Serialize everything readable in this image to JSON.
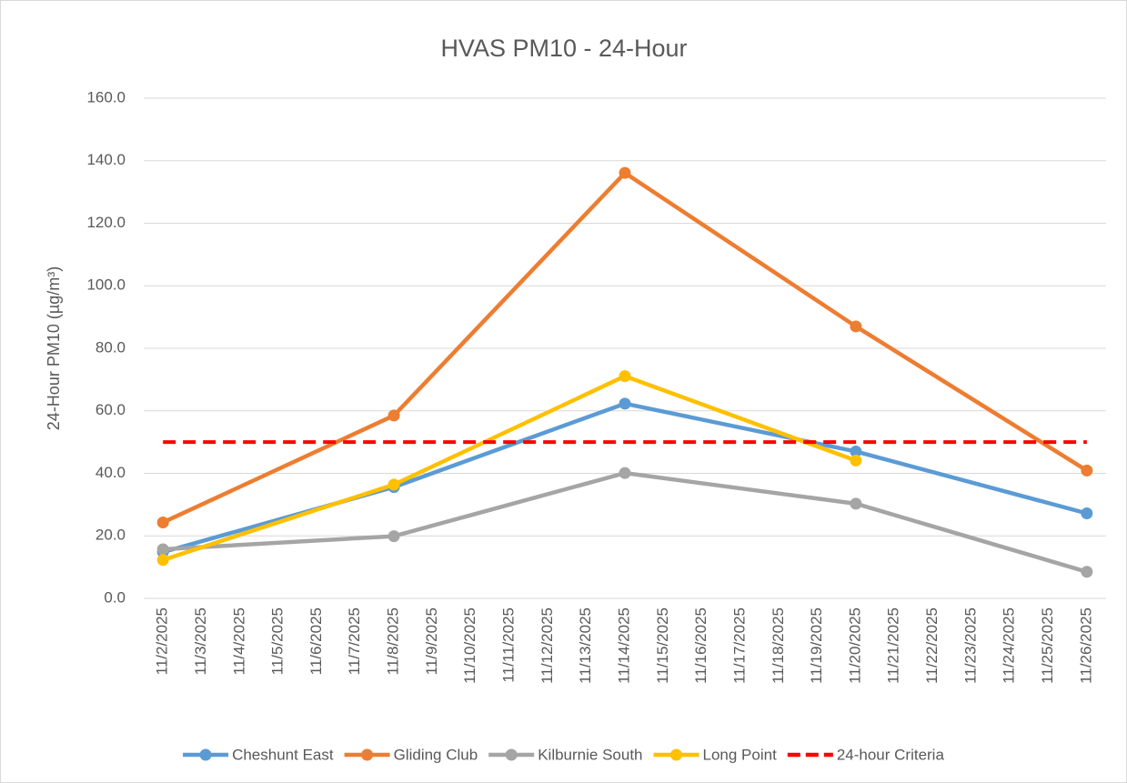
{
  "chart_data": {
    "type": "line",
    "title": "HVAS PM10 - 24-Hour",
    "y_label": "24-Hour PM10 (µg/m³)",
    "xticks": [
      "11/2/2025",
      "11/3/2025",
      "11/4/2025",
      "11/5/2025",
      "11/6/2025",
      "11/7/2025",
      "11/8/2025",
      "11/9/2025",
      "11/10/2025",
      "11/11/2025",
      "11/12/2025",
      "11/13/2025",
      "11/14/2025",
      "11/15/2025",
      "11/16/2025",
      "11/17/2025",
      "11/18/2025",
      "11/19/2025",
      "11/20/2025",
      "11/21/2025",
      "11/22/2025",
      "11/23/2025",
      "11/24/2025",
      "11/25/2025",
      "11/26/2025"
    ],
    "ylim": [
      0,
      160
    ],
    "yticks": [
      {
        "value": 0,
        "label": "0.0"
      },
      {
        "value": 20,
        "label": "20.0"
      },
      {
        "value": 40,
        "label": "40.0"
      },
      {
        "value": 60,
        "label": "60.0"
      },
      {
        "value": 80,
        "label": "80.0"
      },
      {
        "value": 100,
        "label": "100.0"
      },
      {
        "value": 120,
        "label": "120.0"
      },
      {
        "value": 140,
        "label": "140.0"
      },
      {
        "value": 160,
        "label": "160.0"
      }
    ],
    "grid": true,
    "legend": "bottom",
    "series": [
      {
        "name": "Cheshunt East",
        "color": "#5b9bd5",
        "markers": true,
        "x": [
          "11/2/2025",
          "11/8/2025",
          "11/14/2025",
          "11/20/2025",
          "11/26/2025"
        ],
        "values": [
          14.8,
          35.6,
          62.3,
          47.0,
          27.2
        ]
      },
      {
        "name": "Gliding Club",
        "color": "#ed7d31",
        "markers": true,
        "x": [
          "11/2/2025",
          "11/8/2025",
          "11/14/2025",
          "11/20/2025",
          "11/26/2025"
        ],
        "values": [
          24.3,
          58.5,
          136.1,
          87.0,
          40.9
        ]
      },
      {
        "name": "Kilburnie South",
        "color": "#a5a5a5",
        "markers": true,
        "x": [
          "11/2/2025",
          "11/8/2025",
          "11/14/2025",
          "11/20/2025",
          "11/26/2025"
        ],
        "values": [
          15.7,
          19.9,
          40.1,
          30.3,
          8.5
        ]
      },
      {
        "name": "Long Point",
        "color": "#ffc000",
        "markers": true,
        "x": [
          "11/2/2025",
          "11/8/2025",
          "11/14/2025",
          "11/20/2025"
        ],
        "values": [
          12.3,
          36.4,
          71.1,
          44.1
        ]
      },
      {
        "name": "24-hour Criteria",
        "color": "#ff0000",
        "markers": false,
        "dash": true,
        "x": [
          "11/2/2025",
          "11/26/2025"
        ],
        "values": [
          50,
          50
        ]
      }
    ]
  }
}
